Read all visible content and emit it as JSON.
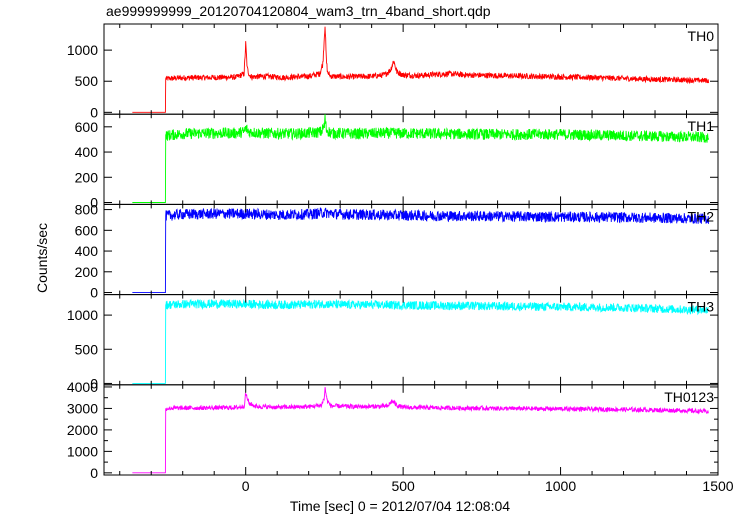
{
  "title": "ae999999999_20120704120804_wam3_trn_4band_short.qdp",
  "ylabel": "Counts/sec",
  "xlabel": "Time [sec] 0 = 2012/07/04 12:08:04",
  "chart_data": {
    "type": "line",
    "x_range": [
      -450,
      1500
    ],
    "x_ticks": [
      0,
      500,
      1000,
      1500
    ],
    "shared_x": true,
    "grid": false,
    "panels": [
      {
        "name": "TH0",
        "color": "#ff0000",
        "ylim": [
          -30,
          1420
        ],
        "y_ticks": [
          0,
          500,
          1000
        ],
        "x": [
          -360,
          -255,
          -254,
          -200,
          -100,
          -30,
          -5,
          0,
          5,
          12,
          20,
          60,
          120,
          200,
          235,
          245,
          252,
          256,
          260,
          270,
          320,
          400,
          440,
          460,
          470,
          480,
          500,
          550,
          600,
          650,
          700,
          800,
          900,
          1000,
          1100,
          1200,
          1300,
          1400,
          1470
        ],
        "y": [
          0,
          0,
          540,
          555,
          560,
          565,
          620,
          1100,
          700,
          600,
          570,
          580,
          560,
          580,
          620,
          780,
          1430,
          850,
          640,
          580,
          570,
          580,
          600,
          680,
          830,
          650,
          600,
          590,
          610,
          620,
          600,
          590,
          580,
          570,
          560,
          545,
          530,
          520,
          510
        ]
      },
      {
        "name": "TH1",
        "color": "#00ff00",
        "ylim": [
          -15,
          700
        ],
        "y_ticks": [
          0,
          200,
          400,
          600
        ],
        "x": [
          -360,
          -255,
          -254,
          -200,
          -100,
          -30,
          -5,
          0,
          10,
          50,
          150,
          200,
          240,
          250,
          252,
          256,
          270,
          350,
          450,
          600,
          800,
          1000,
          1200,
          1400,
          1470
        ],
        "y": [
          0,
          0,
          530,
          545,
          550,
          550,
          560,
          590,
          560,
          550,
          545,
          550,
          560,
          610,
          680,
          580,
          550,
          545,
          550,
          545,
          540,
          540,
          530,
          520,
          515
        ]
      },
      {
        "name": "TH2",
        "color": "#0000ff",
        "ylim": [
          -20,
          850
        ],
        "y_ticks": [
          0,
          200,
          400,
          600,
          800
        ],
        "x": [
          -360,
          -255,
          -254,
          -200,
          -100,
          0,
          100,
          200,
          250,
          300,
          400,
          500,
          600,
          800,
          1000,
          1200,
          1400,
          1470
        ],
        "y": [
          0,
          0,
          740,
          755,
          760,
          760,
          750,
          755,
          770,
          755,
          750,
          745,
          740,
          735,
          730,
          725,
          715,
          710
        ]
      },
      {
        "name": "TH3",
        "color": "#00ffff",
        "ylim": [
          -20,
          1300
        ],
        "y_ticks": [
          0,
          500,
          1000
        ],
        "x": [
          -360,
          -255,
          -254,
          -200,
          -100,
          0,
          100,
          200,
          250,
          300,
          400,
          500,
          600,
          800,
          1000,
          1200,
          1400,
          1470
        ],
        "y": [
          0,
          0,
          1150,
          1160,
          1165,
          1160,
          1150,
          1155,
          1165,
          1150,
          1150,
          1145,
          1140,
          1130,
          1120,
          1110,
          1080,
          1075
        ]
      },
      {
        "name": "TH0123",
        "color": "#ff00ff",
        "ylim": [
          -100,
          4100
        ],
        "y_ticks": [
          0,
          500,
          1000,
          1500,
          2000,
          2500,
          3000,
          3500,
          4000
        ],
        "y_tick_labels": [
          0,
          1000,
          2000,
          3000,
          4000
        ],
        "x": [
          -360,
          -255,
          -254,
          -200,
          -100,
          -30,
          -5,
          0,
          10,
          30,
          100,
          200,
          240,
          250,
          252,
          258,
          270,
          350,
          450,
          465,
          480,
          500,
          600,
          800,
          1000,
          1200,
          1400,
          1470
        ],
        "y": [
          0,
          0,
          3000,
          3020,
          3030,
          3040,
          3100,
          3700,
          3250,
          3100,
          3050,
          3080,
          3150,
          3500,
          4000,
          3400,
          3120,
          3080,
          3100,
          3350,
          3150,
          3050,
          3030,
          3000,
          2980,
          2950,
          2900,
          2850
        ]
      }
    ]
  }
}
